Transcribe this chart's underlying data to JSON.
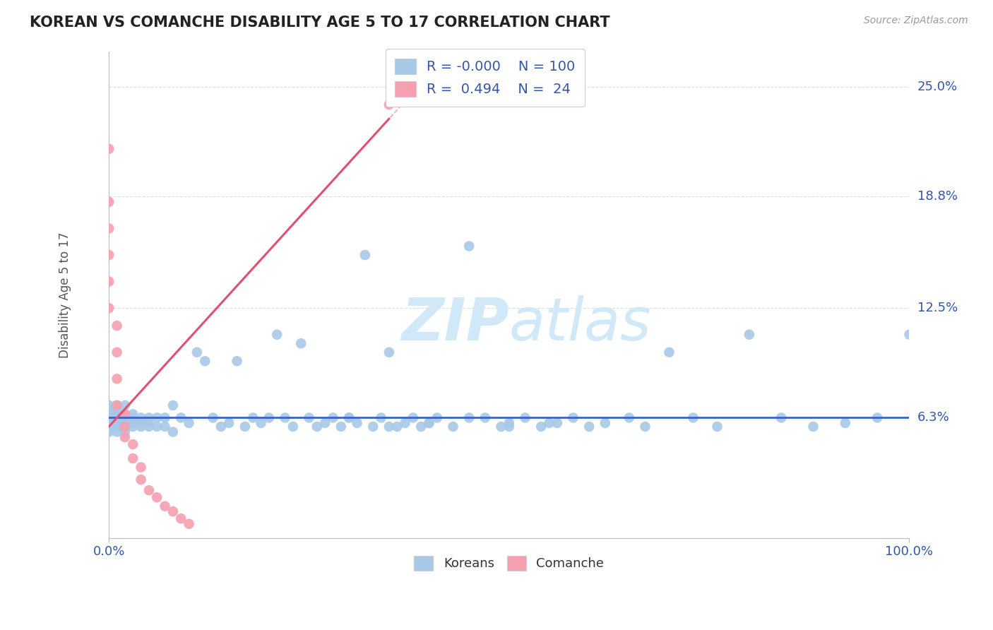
{
  "title": "KOREAN VS COMANCHE DISABILITY AGE 5 TO 17 CORRELATION CHART",
  "source_text": "Source: ZipAtlas.com",
  "ylabel": "Disability Age 5 to 17",
  "x_min": 0.0,
  "x_max": 1.0,
  "y_min": -0.005,
  "y_max": 0.27,
  "x_tick_labels": [
    "0.0%",
    "100.0%"
  ],
  "y_ticks": [
    0.063,
    0.125,
    0.188,
    0.25
  ],
  "y_tick_labels": [
    "6.3%",
    "12.5%",
    "18.8%",
    "25.0%"
  ],
  "korean_color": "#a8c8e8",
  "comanche_color": "#f4a0b0",
  "korean_line_color": "#3366cc",
  "comanche_line_color": "#e05070",
  "comanche_dashed_color": "#e8a8b8",
  "watermark_color": "#d0e8f8",
  "legend_text_color": "#3355aa",
  "title_color": "#222222",
  "grid_color": "#dddddd",
  "legend_r_korean": "-0.000",
  "legend_n_korean": "100",
  "legend_r_comanche": "0.494",
  "legend_n_comanche": "24",
  "korean_x": [
    0.0,
    0.0,
    0.0,
    0.0,
    0.0,
    0.0,
    0.0,
    0.0,
    0.0,
    0.0,
    0.01,
    0.01,
    0.01,
    0.01,
    0.01,
    0.01,
    0.01,
    0.01,
    0.02,
    0.02,
    0.02,
    0.02,
    0.02,
    0.02,
    0.03,
    0.03,
    0.03,
    0.03,
    0.04,
    0.04,
    0.04,
    0.05,
    0.05,
    0.05,
    0.06,
    0.06,
    0.07,
    0.07,
    0.08,
    0.08,
    0.09,
    0.1,
    0.11,
    0.12,
    0.13,
    0.14,
    0.15,
    0.16,
    0.17,
    0.18,
    0.19,
    0.2,
    0.21,
    0.22,
    0.23,
    0.24,
    0.25,
    0.26,
    0.27,
    0.28,
    0.29,
    0.3,
    0.31,
    0.32,
    0.33,
    0.34,
    0.35,
    0.36,
    0.37,
    0.38,
    0.39,
    0.4,
    0.41,
    0.43,
    0.45,
    0.47,
    0.49,
    0.5,
    0.52,
    0.54,
    0.56,
    0.58,
    0.6,
    0.62,
    0.65,
    0.67,
    0.7,
    0.73,
    0.76,
    0.8,
    0.84,
    0.88,
    0.92,
    0.96,
    1.0,
    0.3,
    0.35,
    0.4,
    0.45,
    0.5,
    0.55
  ],
  "korean_y": [
    0.068,
    0.062,
    0.058,
    0.055,
    0.065,
    0.07,
    0.06,
    0.057,
    0.063,
    0.066,
    0.063,
    0.058,
    0.06,
    0.065,
    0.07,
    0.055,
    0.062,
    0.068,
    0.063,
    0.058,
    0.06,
    0.055,
    0.065,
    0.07,
    0.063,
    0.058,
    0.06,
    0.065,
    0.063,
    0.058,
    0.06,
    0.063,
    0.058,
    0.06,
    0.063,
    0.058,
    0.063,
    0.058,
    0.07,
    0.055,
    0.063,
    0.06,
    0.1,
    0.095,
    0.063,
    0.058,
    0.06,
    0.095,
    0.058,
    0.063,
    0.06,
    0.063,
    0.11,
    0.063,
    0.058,
    0.105,
    0.063,
    0.058,
    0.06,
    0.063,
    0.058,
    0.063,
    0.06,
    0.155,
    0.058,
    0.063,
    0.1,
    0.058,
    0.06,
    0.063,
    0.058,
    0.06,
    0.063,
    0.058,
    0.16,
    0.063,
    0.058,
    0.06,
    0.063,
    0.058,
    0.06,
    0.063,
    0.058,
    0.06,
    0.063,
    0.058,
    0.1,
    0.063,
    0.058,
    0.11,
    0.063,
    0.058,
    0.06,
    0.063,
    0.11,
    0.063,
    0.058,
    0.06,
    0.063,
    0.058,
    0.06
  ],
  "comanche_x": [
    0.0,
    0.0,
    0.0,
    0.0,
    0.0,
    0.0,
    0.01,
    0.01,
    0.01,
    0.01,
    0.02,
    0.02,
    0.02,
    0.03,
    0.03,
    0.04,
    0.04,
    0.05,
    0.06,
    0.07,
    0.08,
    0.09,
    0.1,
    0.35
  ],
  "comanche_y": [
    0.215,
    0.185,
    0.17,
    0.155,
    0.14,
    0.125,
    0.115,
    0.1,
    0.085,
    0.07,
    0.065,
    0.058,
    0.052,
    0.048,
    0.04,
    0.035,
    0.028,
    0.022,
    0.018,
    0.013,
    0.01,
    0.006,
    0.003,
    0.24
  ],
  "korean_line_y": 0.063,
  "comanche_line_x0": 0.0,
  "comanche_line_y0": 0.058,
  "comanche_line_x1": 0.35,
  "comanche_line_y1": 0.232
}
